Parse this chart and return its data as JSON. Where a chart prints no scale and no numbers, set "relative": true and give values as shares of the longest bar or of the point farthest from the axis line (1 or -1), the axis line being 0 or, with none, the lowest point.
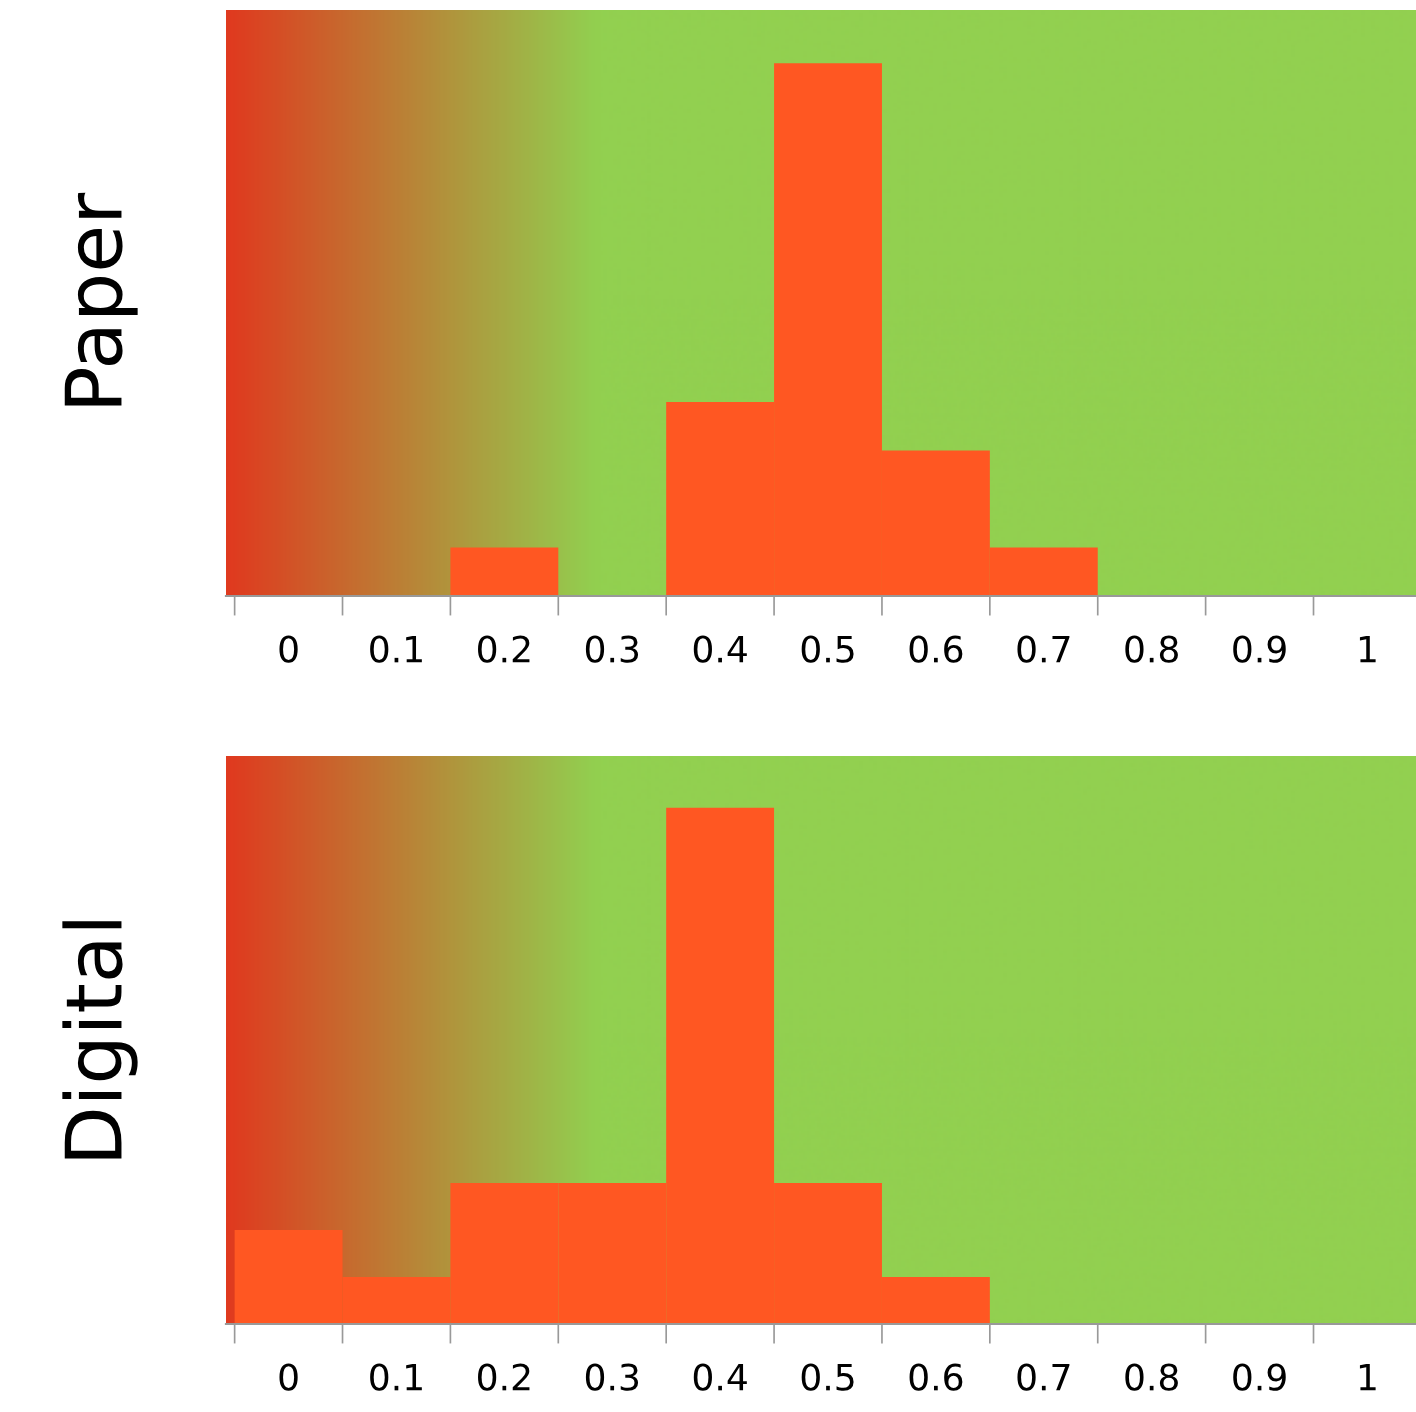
{
  "chart_data": [
    {
      "type": "bar",
      "ylabel": "Paper",
      "relative": true,
      "categories": [
        "0",
        "0.1",
        "0.2",
        "0.3",
        "0.4",
        "0.5",
        "0.6",
        "0.7",
        "0.8",
        "0.9",
        "1"
      ],
      "values": [
        0,
        0,
        0.091,
        0,
        0.364,
        1,
        0.273,
        0.091,
        0,
        0,
        0
      ],
      "color": "#ff5722",
      "grid": false,
      "legend": false
    },
    {
      "type": "bar",
      "ylabel": "Digital",
      "relative": true,
      "categories": [
        "0",
        "0.1",
        "0.2",
        "0.3",
        "0.4",
        "0.5",
        "0.6",
        "0.7",
        "0.8",
        "0.9",
        "1"
      ],
      "values": [
        0.182,
        0.091,
        0.273,
        0.273,
        1,
        0.273,
        0.091,
        0,
        0,
        0,
        0
      ],
      "color": "#ff5722",
      "grid": false,
      "legend": false
    }
  ]
}
